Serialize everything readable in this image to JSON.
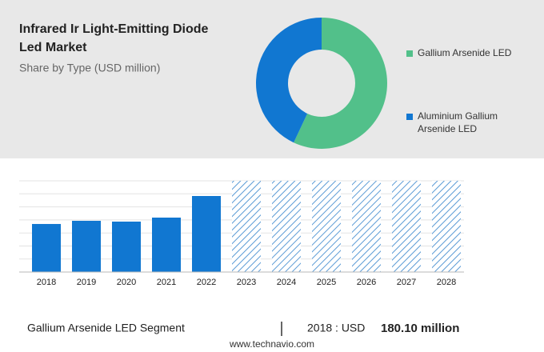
{
  "header": {
    "title_lines": [
      "Infrared Ir Light-Emitting Diode",
      "Led Market"
    ],
    "subtitle": "Share by Type (USD million)"
  },
  "chart_data": [
    {
      "type": "pie",
      "donut": true,
      "categories": [
        "Gallium Arsenide LED",
        "Aluminium Gallium\nArsenide LED"
      ],
      "values": [
        57,
        43
      ],
      "colors": [
        "#52c08a",
        "#1177d1"
      ]
    },
    {
      "type": "bar",
      "categories": [
        "2018",
        "2019",
        "2020",
        "2021",
        "2022",
        "2023",
        "2024",
        "2025",
        "2026",
        "2027",
        "2028"
      ],
      "values": [
        180.1,
        192,
        189,
        204,
        285,
        null,
        null,
        null,
        null,
        null,
        null
      ],
      "color": "#1177d1",
      "ylim": [
        0,
        342
      ]
    }
  ],
  "footer": {
    "segment": "Gallium Arsenide LED Segment",
    "year_label": "2018 : USD",
    "value_text": "180.10 million",
    "site": "www.technavio.com"
  }
}
